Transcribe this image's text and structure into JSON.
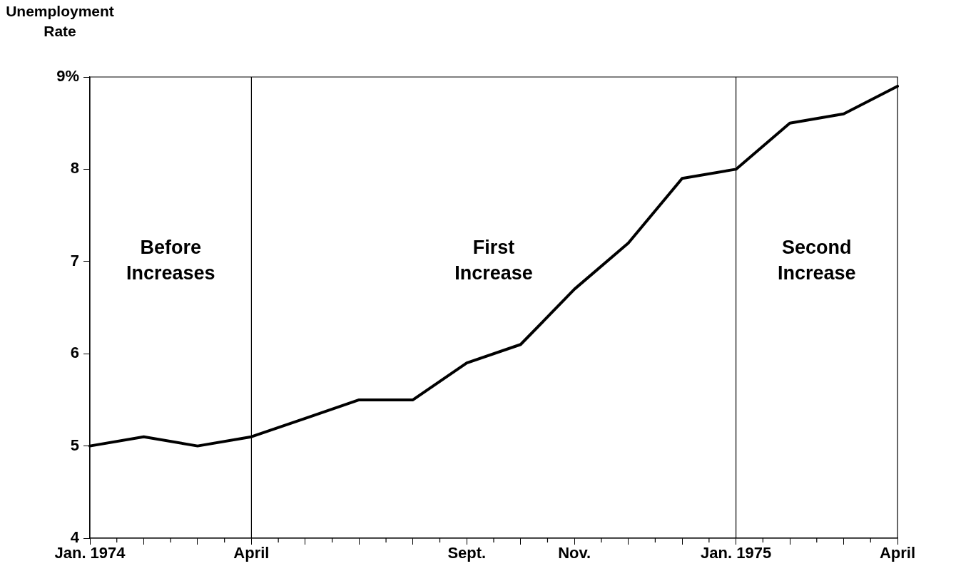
{
  "chart_data": {
    "type": "line",
    "ylabel": "Unemployment Rate",
    "categories": [
      "Jan. 1974",
      null,
      null,
      "April",
      null,
      null,
      null,
      "Sept.",
      null,
      "Nov.",
      null,
      null,
      "Jan. 1975",
      null,
      null,
      "April"
    ],
    "values": [
      5.0,
      5.1,
      5.0,
      5.1,
      5.3,
      5.5,
      5.5,
      5.9,
      6.1,
      6.7,
      7.2,
      7.9,
      8.0,
      8.5,
      8.6,
      8.9
    ],
    "color": "#000000",
    "marker": "none",
    "line_style": "solid",
    "grid": false,
    "legend": false,
    "ylim": [
      4,
      9
    ],
    "yticks": [
      4,
      5,
      6,
      7,
      8,
      {
        "value": 9,
        "label": "9%"
      }
    ],
    "ref_lines": [
      {
        "axis": "x",
        "value": "April",
        "color": "#000000"
      },
      {
        "axis": "x",
        "value": "Jan. 1975",
        "color": "#000000"
      }
    ],
    "annotations": [
      "Before Increases",
      "First Increase",
      "Second Increase"
    ]
  }
}
